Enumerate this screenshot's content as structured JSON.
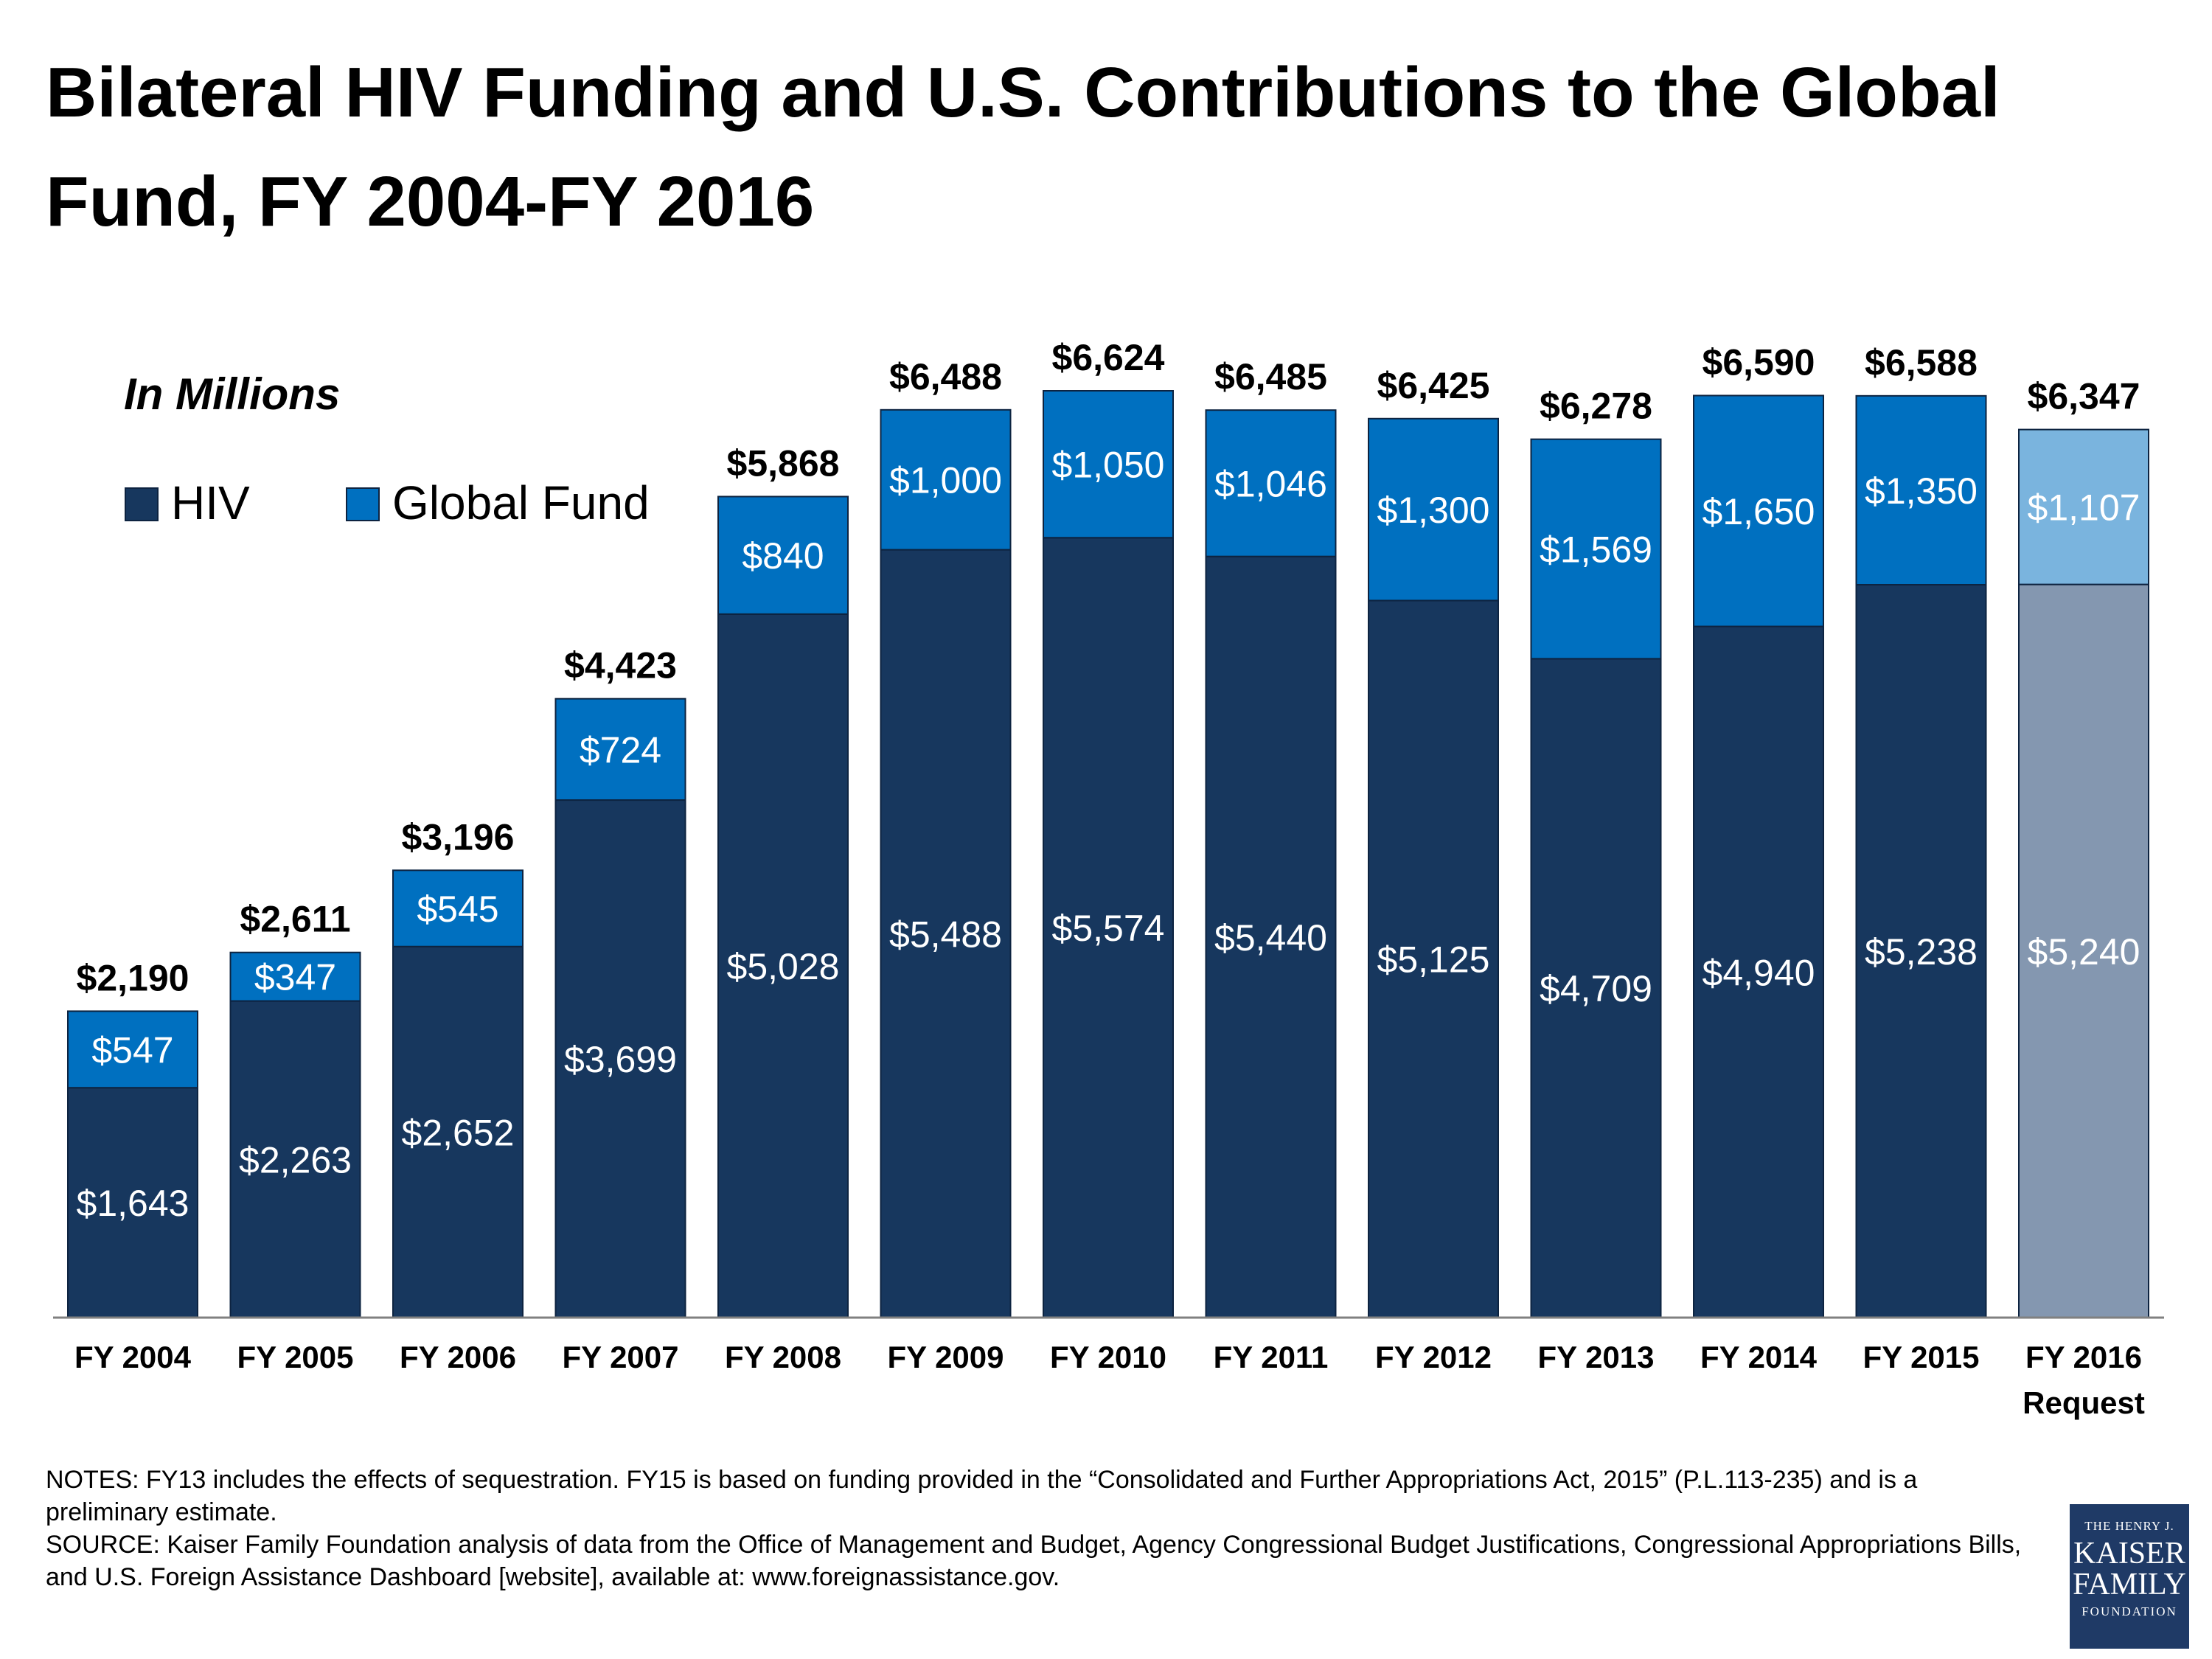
{
  "title": "Bilateral HIV Funding and U.S. Contributions to the Global Fund, FY 2004-FY 2016",
  "colors": {
    "hiv": "#17375e",
    "global_fund": "#0070c0",
    "hiv_request": "#8497b0",
    "global_fund_request": "#7ab4de",
    "bar_outline": "#0d2340"
  },
  "chart_data": {
    "type": "bar",
    "stacked": true,
    "unit_note": "In Millions",
    "categories": [
      "FY 2004",
      "FY 2005",
      "FY 2006",
      "FY 2007",
      "FY 2008",
      "FY 2009",
      "FY 2010",
      "FY 2011",
      "FY 2012",
      "FY 2013",
      "FY 2014",
      "FY 2015",
      "FY 2016\nRequest"
    ],
    "series": [
      {
        "name": "HIV",
        "values": [
          1643,
          2263,
          2652,
          3699,
          5028,
          5488,
          5574,
          5440,
          5125,
          4709,
          4940,
          5238,
          5240
        ],
        "labels": [
          "$1,643",
          "$2,263",
          "$2,652",
          "$3,699",
          "$5,028",
          "$5,488",
          "$5,574",
          "$5,440",
          "$5,125",
          "$4,709",
          "$4,940",
          "$5,238",
          "$5,240"
        ]
      },
      {
        "name": "Global Fund",
        "values": [
          547,
          347,
          545,
          724,
          840,
          1000,
          1050,
          1046,
          1300,
          1569,
          1650,
          1350,
          1107
        ],
        "labels": [
          "$547",
          "$347",
          "$545",
          "$724",
          "$840",
          "$1,000",
          "$1,050",
          "$1,046",
          "$1,300",
          "$1,569",
          "$1,650",
          "$1,350",
          "$1,107"
        ]
      }
    ],
    "totals": [
      2190,
      2611,
      3196,
      4423,
      5868,
      6488,
      6624,
      6485,
      6425,
      6278,
      6590,
      6588,
      6347
    ],
    "total_labels": [
      "$2,190",
      "$2,611",
      "$3,196",
      "$4,423",
      "$5,868",
      "$6,488",
      "$6,624",
      "$6,485",
      "$6,425",
      "$6,278",
      "$6,590",
      "$6,588",
      "$6,347"
    ],
    "highlighted_category": "FY 2016\nRequest",
    "ylim": [
      0,
      6624
    ],
    "grid": false,
    "legend_position": "top-left"
  },
  "notes": {
    "notes_text": "NOTES: FY13 includes the effects of sequestration. FY15 is based on funding provided in the “Consolidated and Further Appropriations Act, 2015” (P.L.113-235) and is a preliminary estimate.",
    "source_text": "SOURCE: Kaiser Family Foundation analysis of data from the Office of Management and Budget, Agency Congressional Budget Justifications, Congressional Appropriations Bills, and U.S. Foreign Assistance Dashboard [website], available at: www.foreignassistance.gov."
  },
  "logo": {
    "line1": "THE HENRY J.",
    "line2": "KAISER",
    "line3": "FAMILY",
    "line4": "FOUNDATION"
  }
}
